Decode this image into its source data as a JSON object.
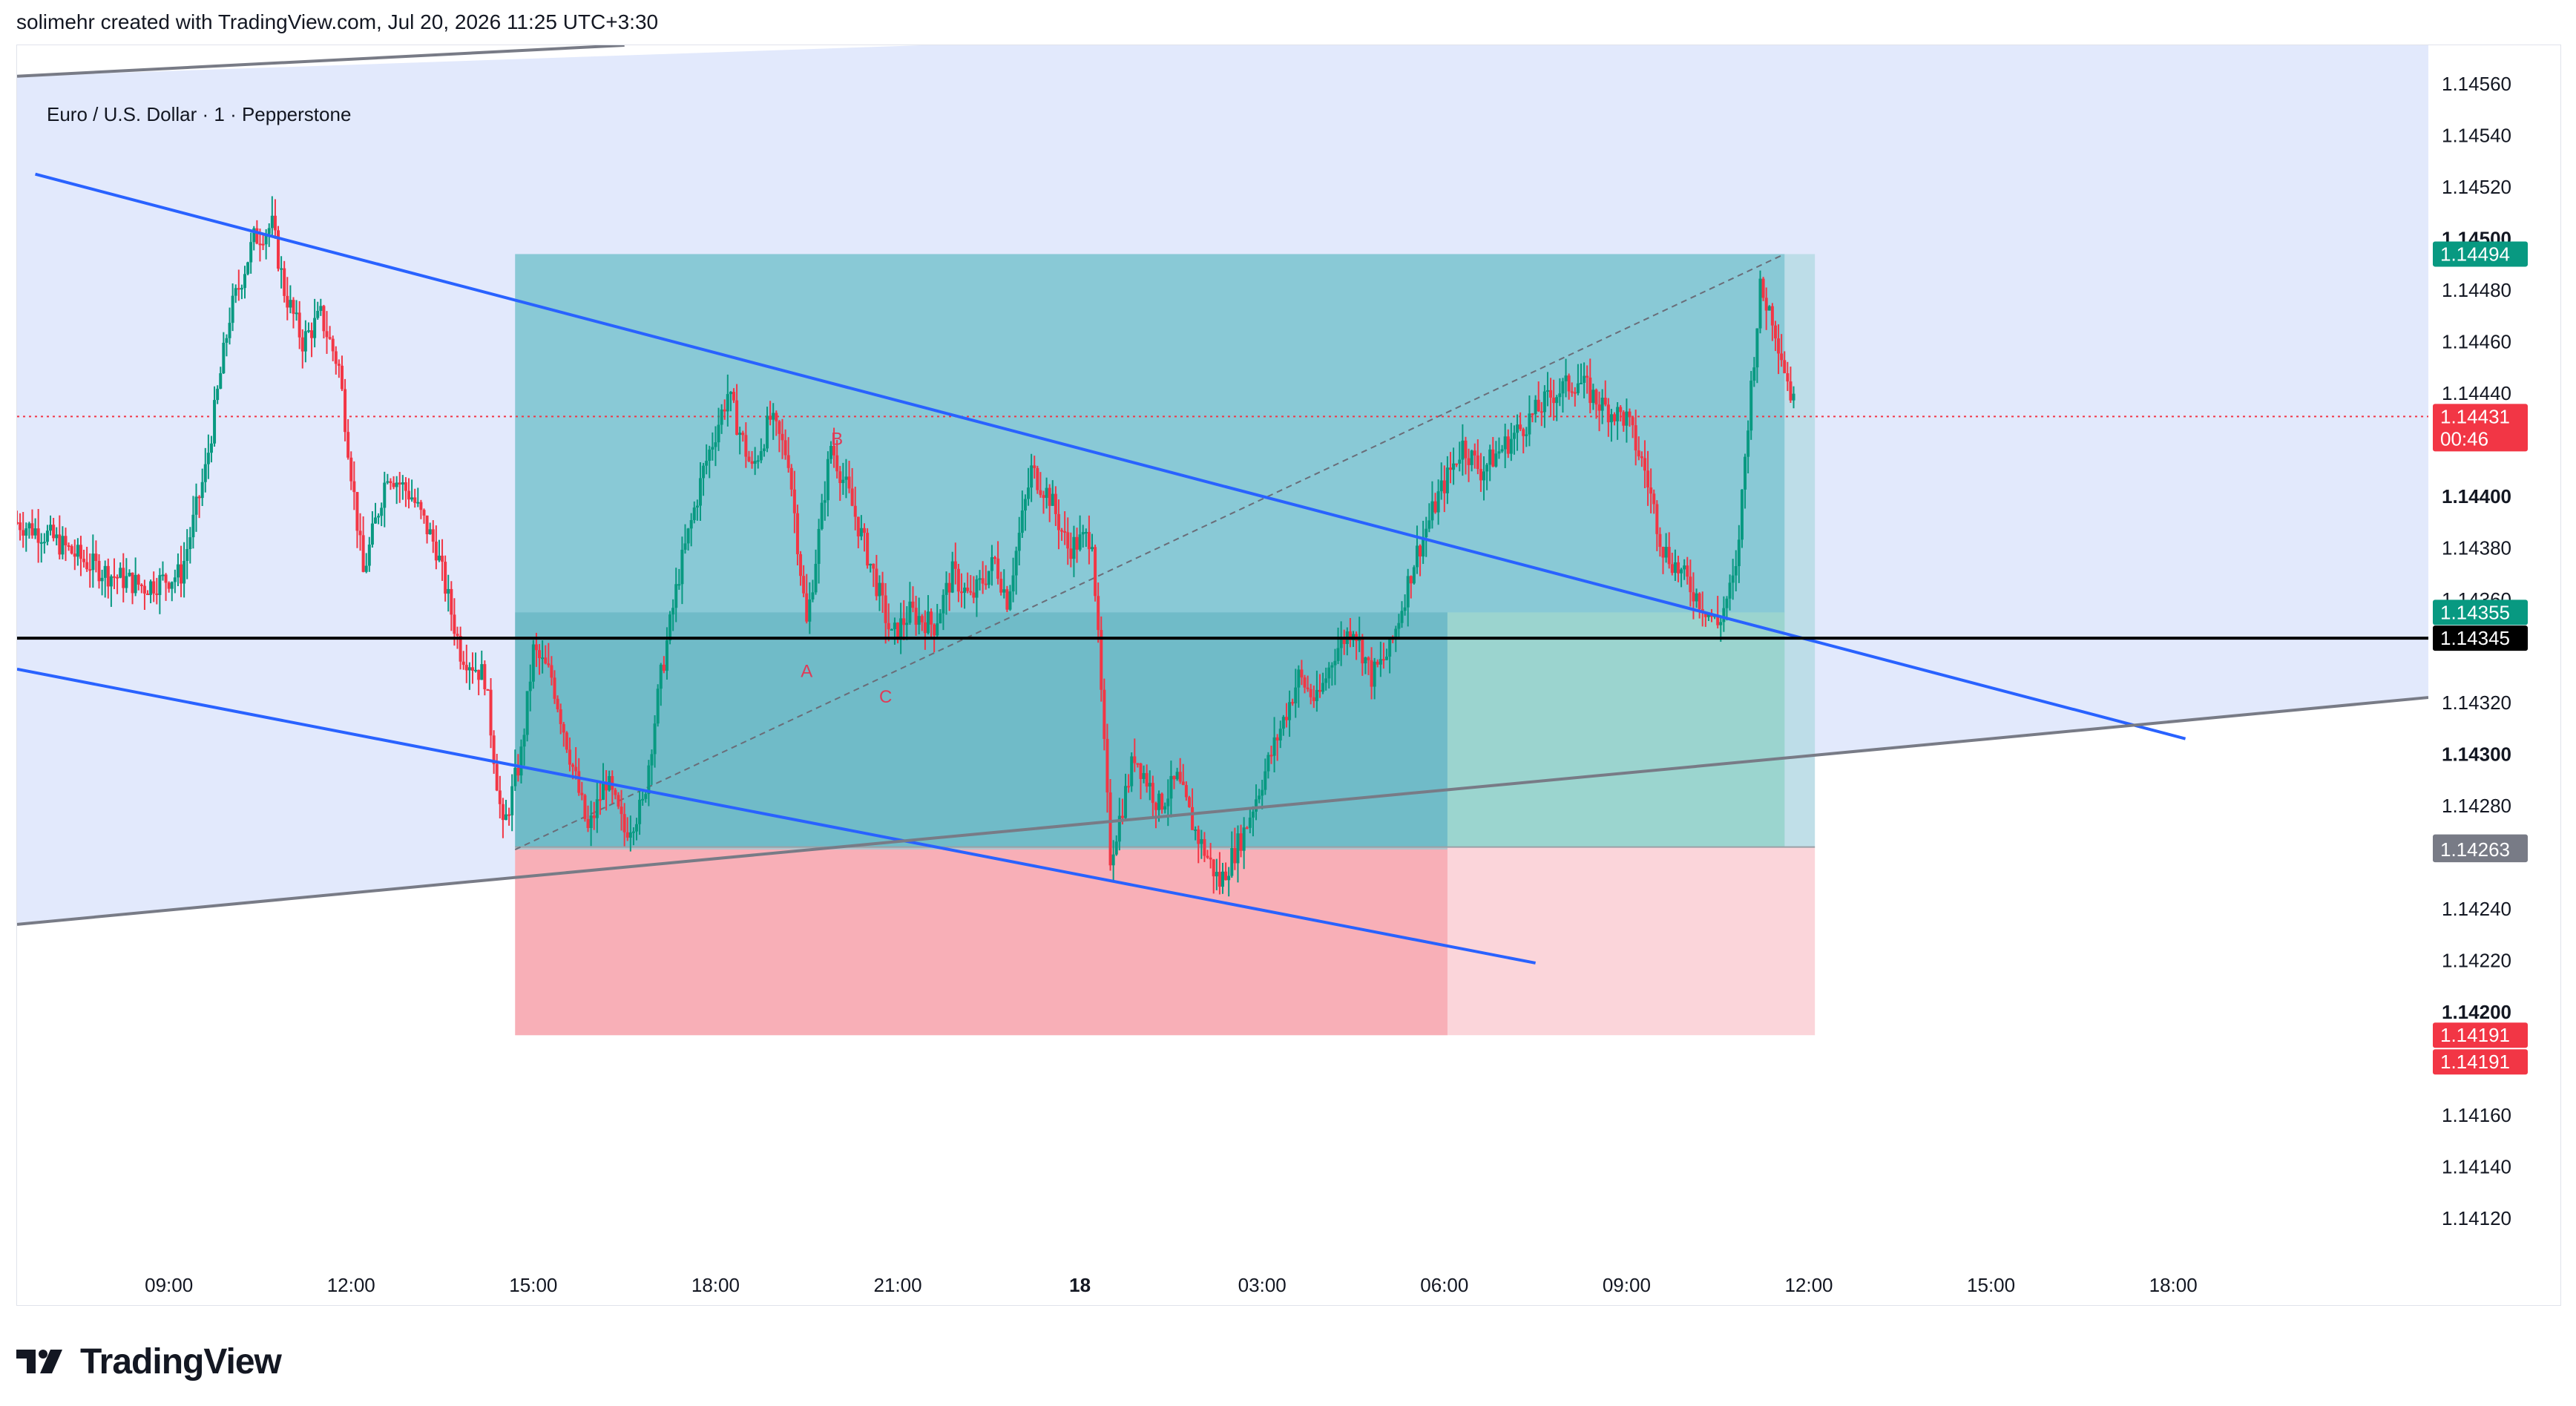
{
  "header": {
    "text": "solimehr created with TradingView.com, Jul 20, 2026 11:25 UTC+3:30"
  },
  "symbol": {
    "title": "Euro / U.S. Dollar · 1 · Pepperstone"
  },
  "footer": {
    "brand": "TradingView"
  },
  "colors": {
    "up": "#089981",
    "down": "#f23645",
    "channel": "#2962ff",
    "wedge": "#787b86",
    "wedge_fill": "#e2e9fc",
    "target": "#5fb8c6",
    "stop": "#f7a1ab",
    "price_line": "#000000"
  },
  "chart_data": {
    "type": "candlestick",
    "symbol": "Euro / U.S. Dollar",
    "interval": "1",
    "exchange": "Pepperstone",
    "x_ticks": [
      {
        "label": "09:00",
        "hour": 9
      },
      {
        "label": "12:00",
        "hour": 12
      },
      {
        "label": "15:00",
        "hour": 15
      },
      {
        "label": "18:00",
        "hour": 18
      },
      {
        "label": "21:00",
        "hour": 21
      },
      {
        "label": "18",
        "hour": 24,
        "bold": true
      },
      {
        "label": "03:00",
        "hour": 27
      },
      {
        "label": "06:00",
        "hour": 30
      },
      {
        "label": "09:00",
        "hour": 33
      },
      {
        "label": "12:00",
        "hour": 36
      },
      {
        "label": "15:00",
        "hour": 39
      },
      {
        "label": "18:00",
        "hour": 42
      }
    ],
    "xlim": [
      6.5,
      46.2
    ],
    "ylim": [
      1.14103,
      1.14575
    ],
    "y_ticks": [
      {
        "label": "1.14560",
        "v": 1.1456
      },
      {
        "label": "1.14540",
        "v": 1.1454
      },
      {
        "label": "1.14520",
        "v": 1.1452
      },
      {
        "label": "1.14500",
        "v": 1.145,
        "bold": true
      },
      {
        "label": "1.14480",
        "v": 1.1448
      },
      {
        "label": "1.14460",
        "v": 1.1446
      },
      {
        "label": "1.14440",
        "v": 1.1444
      },
      {
        "label": "1.14400",
        "v": 1.144,
        "bold": true
      },
      {
        "label": "1.14380",
        "v": 1.1438
      },
      {
        "label": "1.14360",
        "v": 1.1436
      },
      {
        "label": "1.14320",
        "v": 1.1432
      },
      {
        "label": "1.14300",
        "v": 1.143,
        "bold": true
      },
      {
        "label": "1.14280",
        "v": 1.1428
      },
      {
        "label": "1.14240",
        "v": 1.1424
      },
      {
        "label": "1.14220",
        "v": 1.1422
      },
      {
        "label": "1.14200",
        "v": 1.142,
        "bold": true
      },
      {
        "label": "1.14160",
        "v": 1.1416
      },
      {
        "label": "1.14140",
        "v": 1.1414
      },
      {
        "label": "1.14120",
        "v": 1.1412
      }
    ],
    "price_path": [
      [
        6.5,
        1.1439
      ],
      [
        7.0,
        1.14385
      ],
      [
        7.6,
        1.14375
      ],
      [
        8.0,
        1.1437
      ],
      [
        8.6,
        1.14365
      ],
      [
        9.2,
        1.1437
      ],
      [
        9.6,
        1.1441
      ],
      [
        10.0,
        1.1447
      ],
      [
        10.4,
        1.145
      ],
      [
        10.7,
        1.14505
      ],
      [
        10.9,
        1.1448
      ],
      [
        11.2,
        1.1446
      ],
      [
        11.5,
        1.1447
      ],
      [
        11.8,
        1.1445
      ],
      [
        12.2,
        1.1437
      ],
      [
        12.6,
        1.1441
      ],
      [
        13.0,
        1.144
      ],
      [
        13.4,
        1.1438
      ],
      [
        13.8,
        1.1434
      ],
      [
        14.2,
        1.1433
      ],
      [
        14.5,
        1.1427
      ],
      [
        14.8,
        1.143
      ],
      [
        15.0,
        1.1434
      ],
      [
        15.3,
        1.1433
      ],
      [
        15.6,
        1.143
      ],
      [
        15.9,
        1.1427
      ],
      [
        16.2,
        1.1429
      ],
      [
        16.5,
        1.1427
      ],
      [
        16.8,
        1.1428
      ],
      [
        17.1,
        1.1433
      ],
      [
        17.4,
        1.1437
      ],
      [
        17.8,
        1.1441
      ],
      [
        18.2,
        1.1444
      ],
      [
        18.4,
        1.14425
      ],
      [
        18.6,
        1.1441
      ],
      [
        18.9,
        1.1443
      ],
      [
        19.2,
        1.14415
      ],
      [
        19.5,
        1.1435
      ],
      [
        19.9,
        1.1442
      ],
      [
        20.2,
        1.144
      ],
      [
        20.6,
        1.1437
      ],
      [
        20.9,
        1.14345
      ],
      [
        21.2,
        1.14355
      ],
      [
        21.6,
        1.1435
      ],
      [
        21.9,
        1.1437
      ],
      [
        22.2,
        1.1436
      ],
      [
        22.6,
        1.14375
      ],
      [
        22.8,
        1.1436
      ],
      [
        23.2,
        1.1441
      ],
      [
        23.5,
        1.144
      ],
      [
        23.8,
        1.1438
      ],
      [
        24.2,
        1.14385
      ],
      [
        24.5,
        1.1426
      ],
      [
        24.9,
        1.143
      ],
      [
        25.3,
        1.1428
      ],
      [
        25.6,
        1.1429
      ],
      [
        25.9,
        1.1427
      ],
      [
        26.3,
        1.1425
      ],
      [
        26.7,
        1.1427
      ],
      [
        27.0,
        1.1429
      ],
      [
        27.3,
        1.1431
      ],
      [
        27.6,
        1.1433
      ],
      [
        27.9,
        1.1432
      ],
      [
        28.2,
        1.1434
      ],
      [
        28.5,
        1.1435
      ],
      [
        28.8,
        1.1433
      ],
      [
        29.1,
        1.1434
      ],
      [
        29.5,
        1.14375
      ],
      [
        29.9,
        1.144
      ],
      [
        30.3,
        1.1442
      ],
      [
        30.6,
        1.1441
      ],
      [
        31.0,
        1.1442
      ],
      [
        31.4,
        1.1443
      ],
      [
        31.8,
        1.1444
      ],
      [
        32.2,
        1.14445
      ],
      [
        32.6,
        1.14435
      ],
      [
        33.0,
        1.1443
      ],
      [
        33.3,
        1.1441
      ],
      [
        33.6,
        1.1438
      ],
      [
        33.9,
        1.1437
      ],
      [
        34.2,
        1.1436
      ],
      [
        34.5,
        1.1435
      ],
      [
        34.8,
        1.1437
      ],
      [
        35.0,
        1.1443
      ],
      [
        35.2,
        1.1448
      ],
      [
        35.4,
        1.1447
      ],
      [
        35.6,
        1.1445
      ],
      [
        35.8,
        1.14431
      ]
    ],
    "annotations": {
      "long_position": {
        "entry": 1.14264,
        "target": 1.14494,
        "stop": 1.14191,
        "x_start": 14.7,
        "x_fill_end": 35.6,
        "x_end": 36.1
      },
      "inner_position": {
        "entry": 1.14263,
        "target": 1.14355,
        "stop": 1.14191,
        "x_start": 14.7,
        "x_end": 30.05
      },
      "wave_labels": [
        {
          "text": "A",
          "hour": 19.5,
          "price": 1.1433
        },
        {
          "text": "B",
          "hour": 20.0,
          "price": 1.1442
        },
        {
          "text": "C",
          "hour": 20.8,
          "price": 1.1432
        }
      ],
      "channel_upper": {
        "from": [
          6.8,
          1.14525
        ],
        "to": [
          42.2,
          1.14306
        ]
      },
      "channel_lower": {
        "from": [
          6.5,
          1.14333
        ],
        "to": [
          31.5,
          1.14219
        ]
      },
      "wedge_upper": {
        "from": [
          6.5,
          1.14563
        ],
        "to": [
          16.5,
          1.14575
        ]
      },
      "wedge_lower": {
        "from": [
          6.5,
          1.14234
        ],
        "to": [
          46.2,
          1.14322
        ]
      },
      "horizontal_line": 1.14345,
      "current_price_line": 1.14431,
      "trend_arrow": {
        "from": [
          14.7,
          1.14263
        ],
        "to": [
          35.6,
          1.14494
        ]
      }
    },
    "price_tags": [
      {
        "label": "1.14494",
        "v": 1.14494,
        "color": "#089981"
      },
      {
        "label": "1.14431",
        "sub": "00:46",
        "v": 1.14431,
        "color": "#f23645"
      },
      {
        "label": "1.14355",
        "v": 1.14355,
        "color": "#089981"
      },
      {
        "label": "1.14345",
        "v": 1.14345,
        "color": "#000000"
      },
      {
        "label": "1.14264",
        "v": 1.14264,
        "color": "#787b86"
      },
      {
        "label": "1.14263",
        "v": 1.14263,
        "color": "#787b86"
      },
      {
        "label": "1.14191",
        "v": 1.14191,
        "color": "#f23645"
      },
      {
        "label": "1.14191",
        "v": 1.14191,
        "color": "#f23645",
        "offset": 1
      }
    ]
  }
}
